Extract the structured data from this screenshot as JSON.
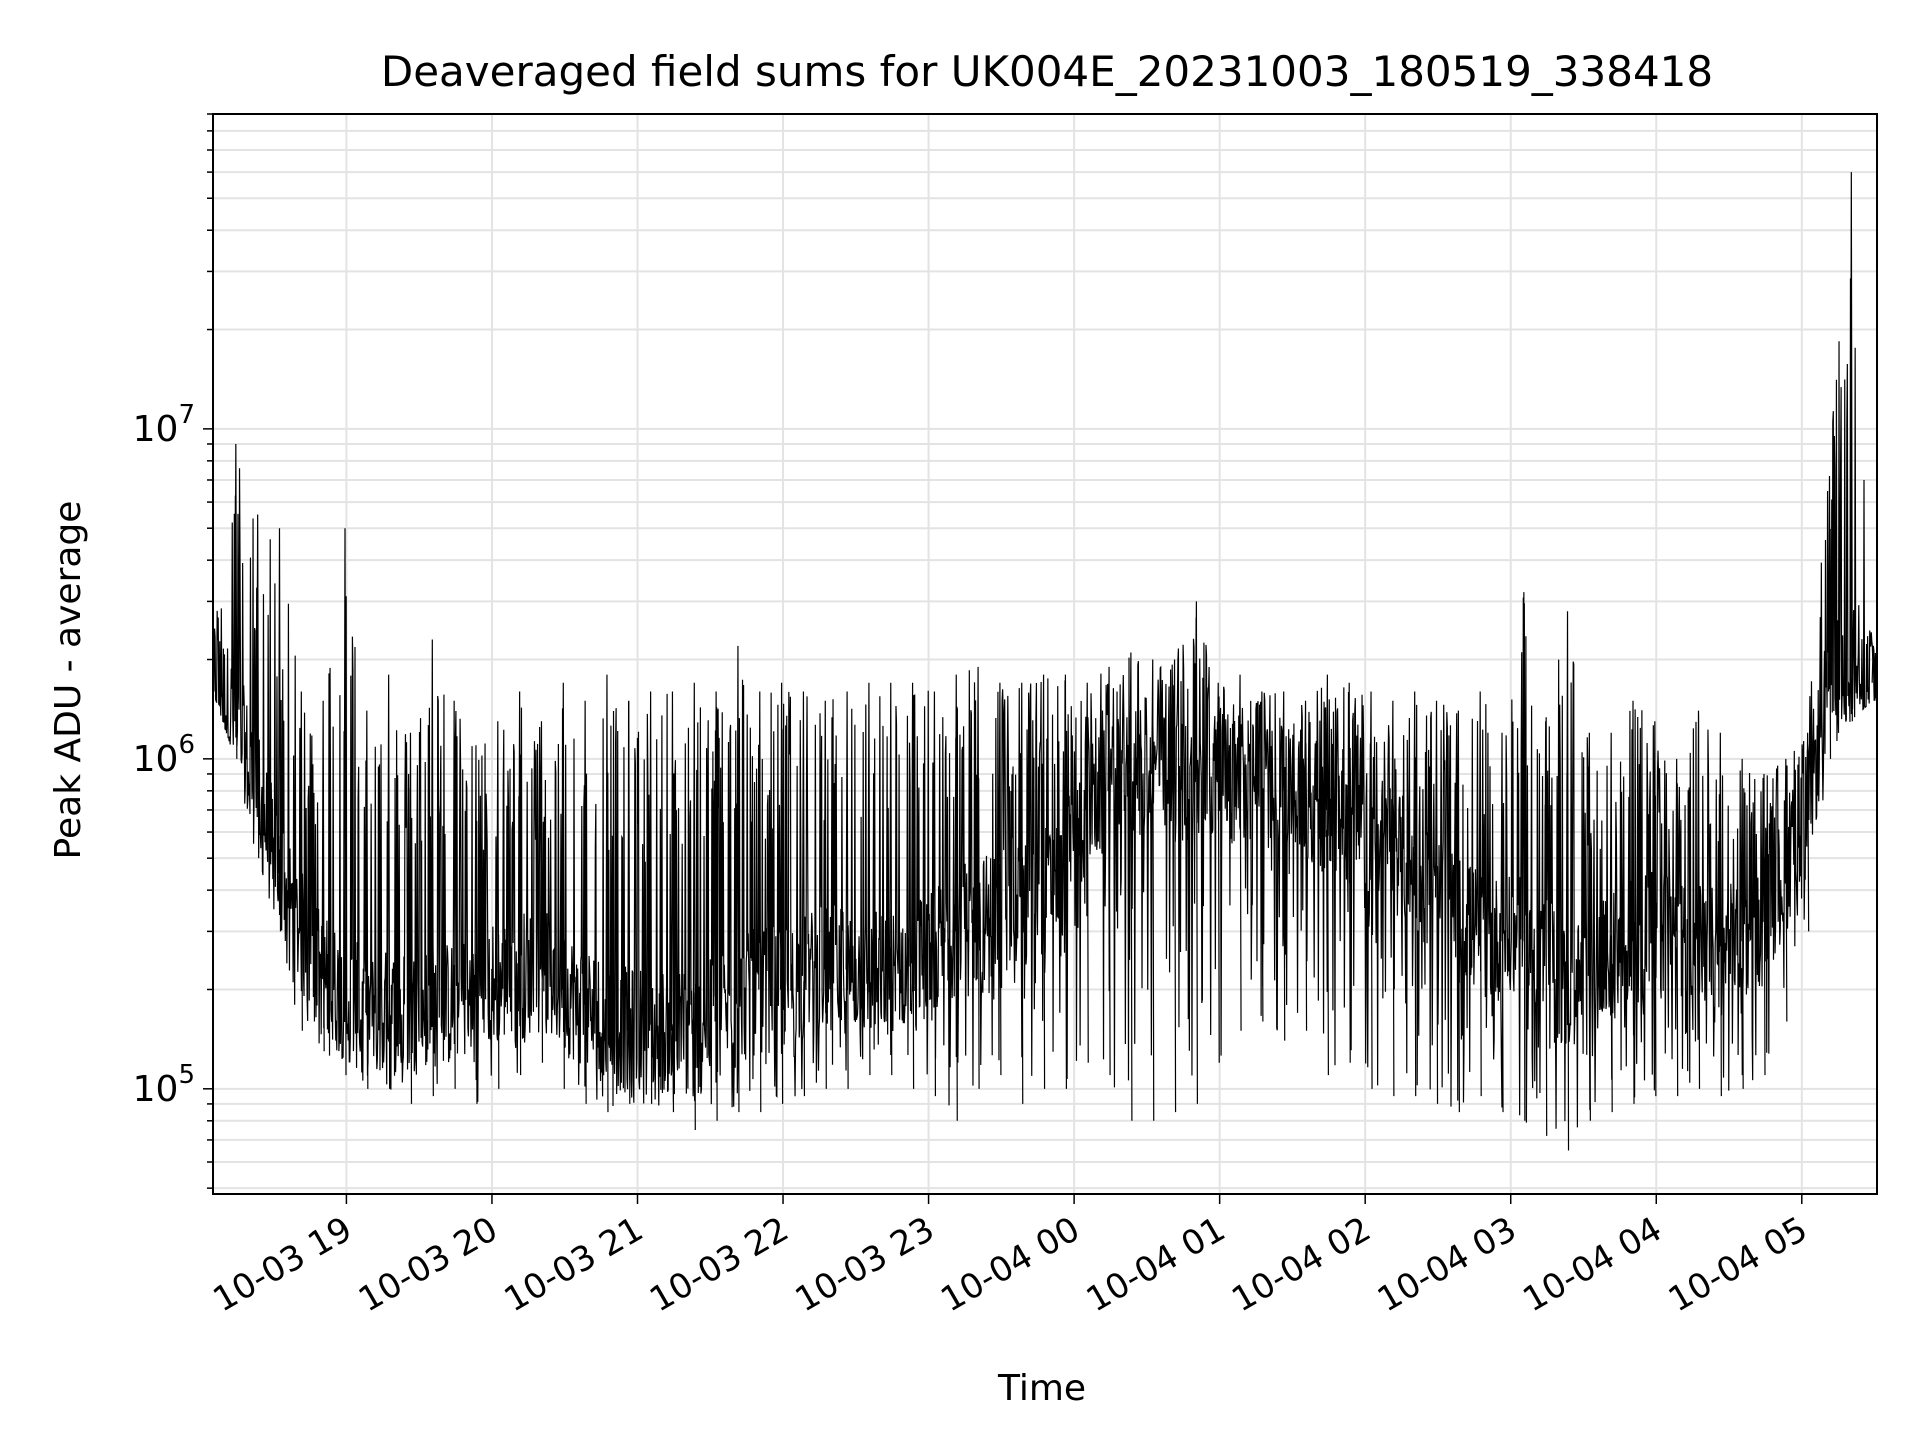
{
  "chart_data": {
    "type": "line",
    "title": "Deaveraged field sums for UK004E_20231003_180519_338418",
    "xlabel": "Time",
    "ylabel": "Peak ADU - average",
    "y_scale": "log",
    "ylim": [
      48000,
      90000000
    ],
    "xlim": [
      "2023-10-03 18:05",
      "2023-10-04 05:31"
    ],
    "grid": true,
    "line_color": "#000000",
    "grid_color": "#e3e3e3",
    "x_ticks": [
      {
        "value": "2023-10-03 19:00",
        "label": "10-03 19"
      },
      {
        "value": "2023-10-03 20:00",
        "label": "10-03 20"
      },
      {
        "value": "2023-10-03 21:00",
        "label": "10-03 21"
      },
      {
        "value": "2023-10-03 22:00",
        "label": "10-03 22"
      },
      {
        "value": "2023-10-03 23:00",
        "label": "10-03 23"
      },
      {
        "value": "2023-10-04 00:00",
        "label": "10-04 00"
      },
      {
        "value": "2023-10-04 01:00",
        "label": "10-04 01"
      },
      {
        "value": "2023-10-04 02:00",
        "label": "10-04 02"
      },
      {
        "value": "2023-10-04 03:00",
        "label": "10-04 03"
      },
      {
        "value": "2023-10-04 04:00",
        "label": "10-04 04"
      },
      {
        "value": "2023-10-04 05:00",
        "label": "10-04 05"
      }
    ],
    "y_ticks": [
      {
        "value": 100000,
        "base": "10",
        "exp": "5"
      },
      {
        "value": 1000000,
        "base": "10",
        "exp": "6"
      },
      {
        "value": 10000000,
        "base": "10",
        "exp": "7"
      }
    ],
    "series": [
      {
        "x": [
          "2023-10-03 18:05",
          "2023-10-03 18:14",
          "2023-10-03 18:23",
          "2023-10-03 18:32",
          "2023-10-03 18:41",
          "2023-10-03 18:50",
          "2023-10-03 18:59",
          "2023-10-03 19:08",
          "2023-10-03 19:17",
          "2023-10-03 19:26",
          "2023-10-03 19:35",
          "2023-10-03 19:44",
          "2023-10-03 19:53",
          "2023-10-03 20:02",
          "2023-10-03 20:11",
          "2023-10-03 20:20",
          "2023-10-03 20:29",
          "2023-10-03 20:38",
          "2023-10-03 20:47",
          "2023-10-03 20:56",
          "2023-10-03 21:05",
          "2023-10-03 21:14",
          "2023-10-03 21:23",
          "2023-10-03 21:32",
          "2023-10-03 21:41",
          "2023-10-03 21:50",
          "2023-10-03 21:59",
          "2023-10-03 22:08",
          "2023-10-03 22:17",
          "2023-10-03 22:26",
          "2023-10-03 22:35",
          "2023-10-03 22:44",
          "2023-10-03 22:53",
          "2023-10-03 23:02",
          "2023-10-03 23:11",
          "2023-10-03 23:20",
          "2023-10-03 23:29",
          "2023-10-03 23:38",
          "2023-10-03 23:47",
          "2023-10-03 23:56",
          "2023-10-04 00:05",
          "2023-10-04 00:14",
          "2023-10-04 00:23",
          "2023-10-04 00:32",
          "2023-10-04 00:41",
          "2023-10-04 00:50",
          "2023-10-04 00:59",
          "2023-10-04 01:08",
          "2023-10-04 01:17",
          "2023-10-04 01:26",
          "2023-10-04 01:35",
          "2023-10-04 01:44",
          "2023-10-04 01:53",
          "2023-10-04 02:02",
          "2023-10-04 02:11",
          "2023-10-04 02:20",
          "2023-10-04 02:29",
          "2023-10-04 02:38",
          "2023-10-04 02:47",
          "2023-10-04 02:56",
          "2023-10-04 03:05",
          "2023-10-04 03:14",
          "2023-10-04 03:23",
          "2023-10-04 03:32",
          "2023-10-04 03:41",
          "2023-10-04 03:50",
          "2023-10-04 03:59",
          "2023-10-04 04:08",
          "2023-10-04 04:17",
          "2023-10-04 04:26",
          "2023-10-04 04:35",
          "2023-10-04 04:44",
          "2023-10-04 04:53",
          "2023-10-04 05:02",
          "2023-10-04 05:11",
          "2023-10-04 05:20",
          "2023-10-04 05:29"
        ],
        "upper": [
          2300000,
          9000000,
          5500000,
          5000000,
          1600000,
          1500000,
          5000000,
          1400000,
          1800000,
          1200000,
          2300000,
          1500000,
          1100000,
          1300000,
          1600000,
          1300000,
          1700000,
          1500000,
          1800000,
          1500000,
          1600000,
          1600000,
          1700000,
          1600000,
          2200000,
          1600000,
          1700000,
          1600000,
          1500000,
          1600000,
          1700000,
          1700000,
          1700000,
          1600000,
          1800000,
          1900000,
          1700000,
          1700000,
          1800000,
          1800000,
          1700000,
          1900000,
          2100000,
          2000000,
          2000000,
          3000000,
          1700000,
          1800000,
          1600000,
          1600000,
          1500000,
          1800000,
          1700000,
          1600000,
          1500000,
          1600000,
          1500000,
          1400000,
          1600000,
          1200000,
          3200000,
          1300000,
          2800000,
          1200000,
          1200000,
          1500000,
          1300000,
          1000000,
          1400000,
          1200000,
          1000000,
          900000,
          1000000,
          1200000,
          7200000,
          60000000,
          2200000
        ],
        "lower": [
          1600000,
          1000000,
          500000,
          300000,
          150000,
          130000,
          110000,
          100000,
          100000,
          90000,
          95000,
          100000,
          90000,
          100000,
          110000,
          120000,
          100000,
          90000,
          85000,
          90000,
          90000,
          85000,
          75000,
          80000,
          85000,
          85000,
          90000,
          95000,
          100000,
          100000,
          110000,
          110000,
          100000,
          95000,
          80000,
          100000,
          110000,
          90000,
          100000,
          100000,
          120000,
          110000,
          80000,
          80000,
          85000,
          90000,
          120000,
          150000,
          160000,
          140000,
          150000,
          110000,
          120000,
          100000,
          95000,
          95000,
          90000,
          85000,
          95000,
          85000,
          80000,
          72000,
          65000,
          80000,
          85000,
          90000,
          95000,
          95000,
          100000,
          95000,
          100000,
          110000,
          160000,
          300000,
          1000000,
          1300000,
          1500000
        ],
        "typical": [
          1800000,
          1300000,
          800000,
          450000,
          300000,
          220000,
          190000,
          170000,
          170000,
          170000,
          180000,
          180000,
          200000,
          210000,
          220000,
          230000,
          200000,
          180000,
          160000,
          150000,
          150000,
          150000,
          150000,
          160000,
          180000,
          200000,
          200000,
          220000,
          230000,
          230000,
          220000,
          230000,
          240000,
          260000,
          300000,
          320000,
          350000,
          380000,
          400000,
          450000,
          700000,
          800000,
          900000,
          900000,
          850000,
          850000,
          850000,
          850000,
          850000,
          800000,
          750000,
          700000,
          650000,
          600000,
          550000,
          450000,
          380000,
          330000,
          300000,
          280000,
          280000,
          250000,
          200000,
          220000,
          250000,
          280000,
          300000,
          300000,
          280000,
          260000,
          280000,
          320000,
          450000,
          700000,
          1600000,
          2000000,
          1700000
        ]
      }
    ]
  }
}
